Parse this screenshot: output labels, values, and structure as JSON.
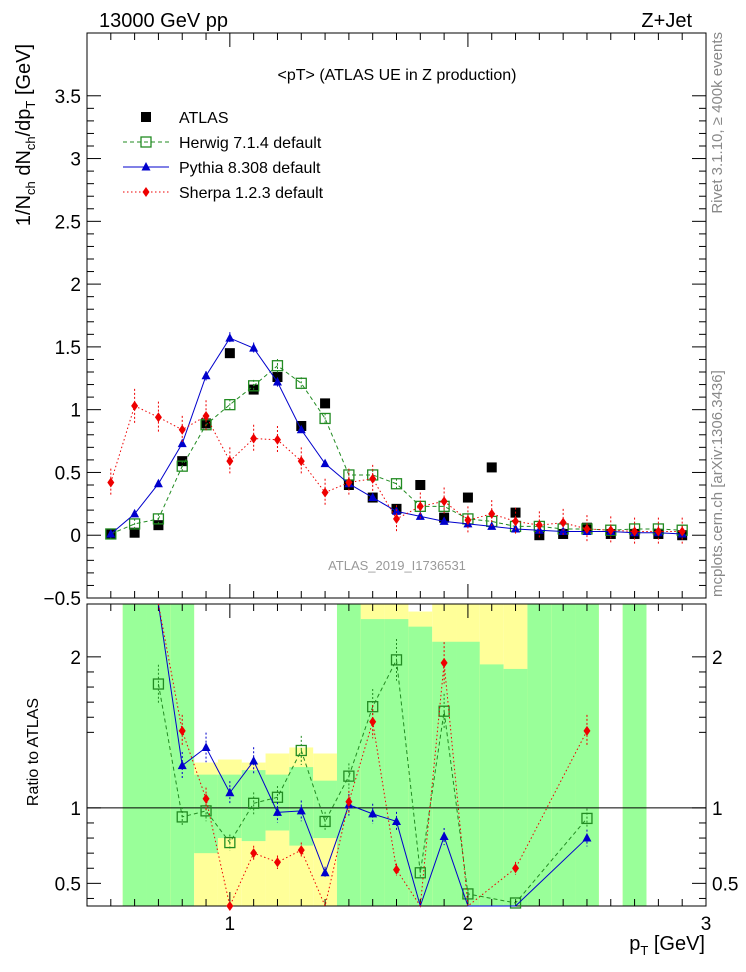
{
  "header": {
    "left": "13000 GeV pp",
    "right": "Z+Jet",
    "plot_title": "<pT> (ATLAS UE in Z production)",
    "watermark": "ATLAS_2019_I1736531",
    "side_top": "Rivet 3.1.10, ≥ 400k events",
    "side_bottom": "mcplots.cern.ch [arXiv:1306.3436]"
  },
  "chart_data": [
    {
      "type": "line",
      "xlabel": "p_T [GeV]",
      "ylabel": "1/N_ch dN_ch/dp_T [GeV]",
      "xlim": [
        0.4,
        3.0
      ],
      "ylim": [
        -0.5,
        4.0
      ],
      "y_ticks": [
        -0.5,
        0,
        0.5,
        1,
        1.5,
        2,
        2.5,
        3,
        3.5
      ],
      "y_tick_labels": [
        "−0.5",
        "0",
        "0.5",
        "1",
        "1.5",
        "2",
        "2.5",
        "3",
        "3.5"
      ],
      "x": [
        0.5,
        0.6,
        0.7,
        0.8,
        0.9,
        1.0,
        1.1,
        1.2,
        1.3,
        1.4,
        1.5,
        1.6,
        1.7,
        1.8,
        1.9,
        2.0,
        2.1,
        2.2,
        2.3,
        2.4,
        2.5,
        2.6,
        2.7,
        2.8,
        2.9
      ],
      "series": [
        {
          "name": "ATLAS",
          "color": "#000000",
          "style": "data",
          "values": [
            0.01,
            0.02,
            0.08,
            0.59,
            0.89,
            1.45,
            1.16,
            1.26,
            0.87,
            1.05,
            0.4,
            0.3,
            0.21,
            0.4,
            0.14,
            0.3,
            0.54,
            0.18,
            0.0,
            0.01,
            0.06,
            0.01,
            0.01,
            0.01,
            0.0
          ]
        },
        {
          "name": "Herwig 7.1.4 default",
          "color": "#228b22",
          "style": "open-square",
          "values": [
            0.01,
            0.09,
            0.13,
            0.55,
            0.88,
            1.04,
            1.19,
            1.35,
            1.21,
            0.93,
            0.48,
            0.48,
            0.41,
            0.23,
            0.23,
            0.13,
            0.11,
            0.07,
            0.07,
            0.05,
            0.05,
            0.04,
            0.05,
            0.05,
            0.04
          ]
        },
        {
          "name": "Pythia 8.308 default",
          "color": "#0000cc",
          "style": "filled-triangle",
          "values": [
            0.01,
            0.17,
            0.41,
            0.73,
            1.27,
            1.57,
            1.49,
            1.22,
            0.84,
            0.57,
            0.41,
            0.3,
            0.19,
            0.15,
            0.11,
            0.09,
            0.07,
            0.05,
            0.04,
            0.03,
            0.03,
            0.03,
            0.02,
            0.02,
            0.01
          ]
        },
        {
          "name": "Sherpa 1.2.3 default",
          "color": "#ee0000",
          "style": "filled-diamond",
          "values": [
            0.42,
            1.03,
            0.94,
            0.84,
            0.95,
            0.59,
            0.77,
            0.76,
            0.59,
            0.34,
            0.42,
            0.45,
            0.13,
            0.23,
            0.27,
            0.12,
            0.17,
            0.11,
            0.08,
            0.1,
            0.05,
            0.04,
            0.03,
            0.03,
            0.03
          ]
        }
      ]
    },
    {
      "type": "line",
      "xlabel": "p_T [GeV]",
      "ylabel": "Ratio to ATLAS",
      "xlim": [
        0.4,
        3.0
      ],
      "ylim": [
        0.35,
        2.35
      ],
      "y_ticks": [
        0.5,
        1,
        2
      ],
      "y_tick_labels": [
        "0.5",
        "1",
        "2"
      ],
      "x_ticks": [
        1,
        2,
        3
      ],
      "x_tick_labels": [
        "1",
        "2",
        "3"
      ],
      "reference_line": 1,
      "x": [
        0.7,
        0.8,
        0.9,
        1.0,
        1.1,
        1.2,
        1.3,
        1.4,
        1.5,
        1.6,
        1.7,
        1.8,
        1.9,
        2.0,
        2.2,
        2.5
      ],
      "series": [
        {
          "name": "Herwig 7.1.4 default",
          "color": "#228b22",
          "values": [
            1.82,
            0.94,
            0.98,
            0.77,
            1.03,
            1.07,
            1.38,
            0.91,
            1.21,
            1.67,
            1.98,
            0.57,
            1.64,
            0.43,
            0.37,
            0.93
          ]
        },
        {
          "name": "Pythia 8.308 default",
          "color": "#0000cc",
          "values": [
            null,
            1.28,
            1.4,
            1.1,
            1.31,
            0.97,
            0.98,
            0.57,
            1.02,
            0.96,
            0.91,
            0.3,
            0.81,
            0.3,
            null,
            0.8
          ]
        },
        {
          "name": "Sherpa 1.2.3 default",
          "color": "#ee0000",
          "values": [
            null,
            1.51,
            1.06,
            0.35,
            0.7,
            0.64,
            0.72,
            0.3,
            1.04,
            1.57,
            0.59,
            0.3,
            1.96,
            0.3,
            0.6,
            1.51
          ]
        }
      ]
    }
  ]
}
